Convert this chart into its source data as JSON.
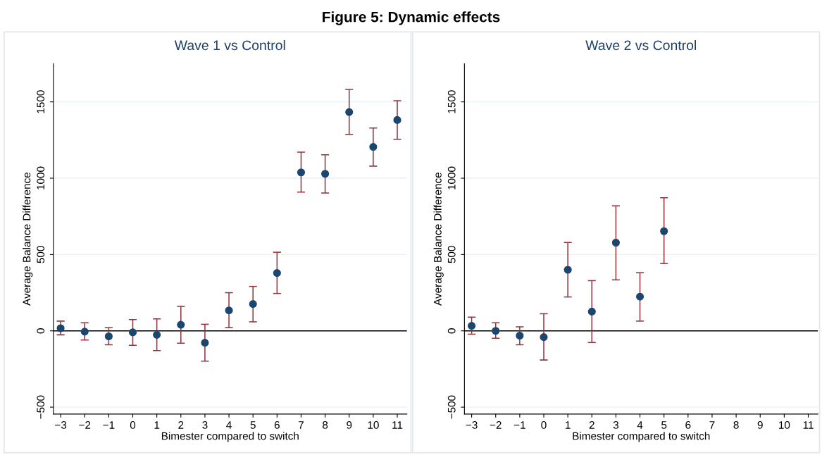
{
  "chart_data": [
    {
      "type": "scatter",
      "annotations": [
        "Figure 5: Dynamic effects"
      ],
      "title": "Wave 1 vs Control",
      "xlabel": "Bimester compared to switch",
      "ylabel": "Average Balance Difference",
      "x": [
        -3,
        -2,
        -1,
        0,
        1,
        2,
        3,
        4,
        5,
        6,
        7,
        8,
        9,
        10,
        11
      ],
      "series": [
        {
          "color": "#1a476f",
          "values": [
            17,
            -5,
            -36,
            -10,
            -26,
            40,
            -78,
            134,
            176,
            379,
            1038,
            1029,
            1433,
            1205,
            1381
          ],
          "errors": [
            [
              -26,
              64
            ],
            [
              -60,
              53
            ],
            [
              -91,
              21
            ],
            [
              -95,
              74
            ],
            [
              -129,
              78
            ],
            [
              -81,
              160
            ],
            [
              -198,
              43
            ],
            [
              21,
              250
            ],
            [
              59,
              291
            ],
            [
              245,
              515
            ],
            [
              909,
              1171
            ],
            [
              903,
              1153
            ],
            [
              1286,
              1581
            ],
            [
              1079,
              1329
            ],
            [
              1255,
              1507
            ]
          ]
        }
      ],
      "xlim": [
        -3.3,
        11.4
      ],
      "ylim": [
        -545,
        1750
      ],
      "xticks": [
        {
          "value": -3,
          "label": "−3"
        },
        {
          "value": -2,
          "label": "−2"
        },
        {
          "value": -1,
          "label": "−1"
        },
        0,
        1,
        2,
        3,
        4,
        5,
        6,
        7,
        8,
        9,
        10,
        11
      ],
      "yticks": [
        {
          "value": -500,
          "label": "−500"
        },
        0,
        500,
        1000,
        1500
      ],
      "ref_lines": [
        {
          "axis": "y",
          "value": 0,
          "color": "#000000"
        }
      ],
      "grid": "y",
      "marker": "circle"
    },
    {
      "type": "scatter",
      "title": "Wave 2 vs Control",
      "xlabel": "Bimester compared to switch",
      "ylabel": "Average Balance Difference",
      "x": [
        -3,
        -2,
        -1,
        0,
        1,
        2,
        3,
        4,
        5
      ],
      "series": [
        {
          "color": "#1a476f",
          "values": [
            33,
            0,
            -31,
            -41,
            400,
            126,
            578,
            224,
            653
          ],
          "errors": [
            [
              -22,
              90
            ],
            [
              -48,
              53
            ],
            [
              -91,
              26
            ],
            [
              -191,
              112
            ],
            [
              222,
              579
            ],
            [
              -76,
              329
            ],
            [
              334,
              819
            ],
            [
              64,
              381
            ],
            [
              441,
              872
            ]
          ]
        }
      ],
      "xlim": [
        -3.3,
        11.4
      ],
      "ylim": [
        -545,
        1750
      ],
      "xticks": [
        {
          "value": -3,
          "label": "−3"
        },
        {
          "value": -2,
          "label": "−2"
        },
        {
          "value": -1,
          "label": "−1"
        },
        0,
        1,
        2,
        3,
        4,
        5,
        6,
        7,
        8,
        9,
        10,
        11
      ],
      "yticks": [
        {
          "value": -500,
          "label": "−500"
        },
        0,
        500,
        1000,
        1500
      ],
      "ref_lines": [
        {
          "axis": "y",
          "value": 0,
          "color": "#000000"
        }
      ],
      "grid": "y",
      "marker": "circle"
    }
  ]
}
